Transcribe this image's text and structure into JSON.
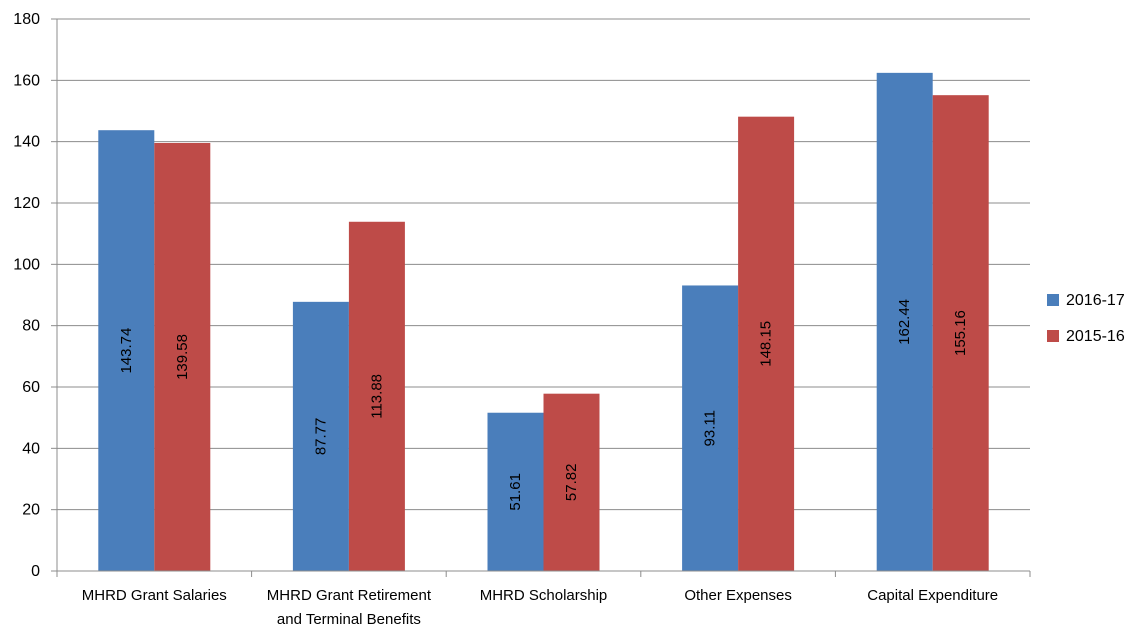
{
  "chart_data": {
    "type": "bar",
    "title": "",
    "xlabel": "",
    "ylabel": "",
    "categories": [
      [
        "MHRD Grant Salaries"
      ],
      [
        "MHRD Grant Retirement",
        "and Terminal Benefits"
      ],
      [
        "MHRD Scholarship"
      ],
      [
        "Other Expenses"
      ],
      [
        "Capital Expenditure"
      ]
    ],
    "series": [
      {
        "name": "2016-17",
        "color": "#4a7ebb",
        "values": [
          143.74,
          87.77,
          51.61,
          93.11,
          162.44
        ],
        "labels": [
          "143.74",
          "87.77",
          "51.61",
          "93.11",
          "162.44"
        ]
      },
      {
        "name": "2015-16",
        "color": "#be4b48",
        "values": [
          139.58,
          113.88,
          57.82,
          148.15,
          155.16
        ],
        "labels": [
          "139.58",
          "113.88",
          "57.82",
          "148.15",
          "155.16"
        ]
      }
    ],
    "ylim": [
      0,
      180
    ],
    "yticks": [
      0,
      20,
      40,
      60,
      80,
      100,
      120,
      140,
      160,
      180
    ],
    "grid": true,
    "legend_position": "right"
  }
}
